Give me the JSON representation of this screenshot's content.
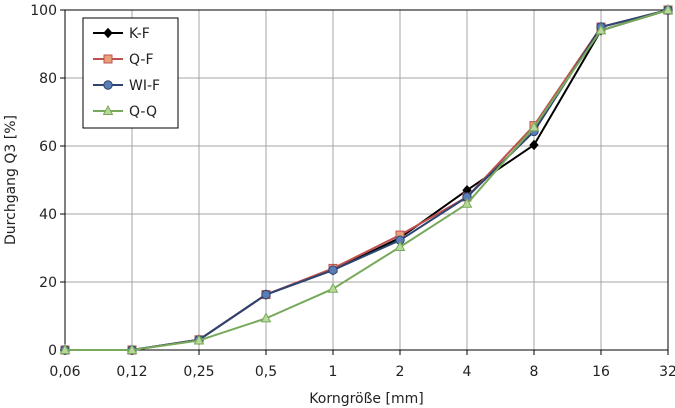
{
  "chart_data": {
    "type": "line",
    "x_scale": "log2",
    "x": [
      0.06,
      0.12,
      0.25,
      0.5,
      1,
      2,
      4,
      8,
      16,
      32
    ],
    "x_tick_labels": [
      "0,06",
      "0,12",
      "0,25",
      "0,5",
      "1",
      "2",
      "4",
      "8",
      "16",
      "32"
    ],
    "xlabel": "Korngröße [mm]",
    "ylabel": "Durchgang Q3 [%]",
    "ylim": [
      0,
      100
    ],
    "y_ticks": [
      0,
      20,
      40,
      60,
      80,
      100
    ],
    "grid": true,
    "legend_position": "top-left",
    "series": [
      {
        "name": "K-F",
        "color": "#000000",
        "marker": "diamond",
        "marker_fill": "#000000",
        "values": [
          0,
          0,
          3,
          16.3,
          23.5,
          33,
          47,
          60.3,
          94,
          100
        ]
      },
      {
        "name": "Q-F",
        "color": "#c0504d",
        "marker": "square",
        "marker_fill": "#e8a07a",
        "values": [
          0,
          0,
          3,
          16.3,
          24,
          33.8,
          45,
          66,
          95,
          100
        ]
      },
      {
        "name": "WI-F",
        "color": "#2e4472",
        "marker": "circle",
        "marker_fill": "#5b7db5",
        "values": [
          0,
          0,
          3,
          16.3,
          23.5,
          32.3,
          45,
          64.3,
          95,
          100
        ]
      },
      {
        "name": "Q-Q",
        "color": "#77a95a",
        "marker": "triangle",
        "marker_fill": "#b8d89a",
        "values": [
          0,
          0,
          2.8,
          9.3,
          18,
          30.3,
          43,
          65.5,
          94,
          100
        ]
      }
    ]
  }
}
